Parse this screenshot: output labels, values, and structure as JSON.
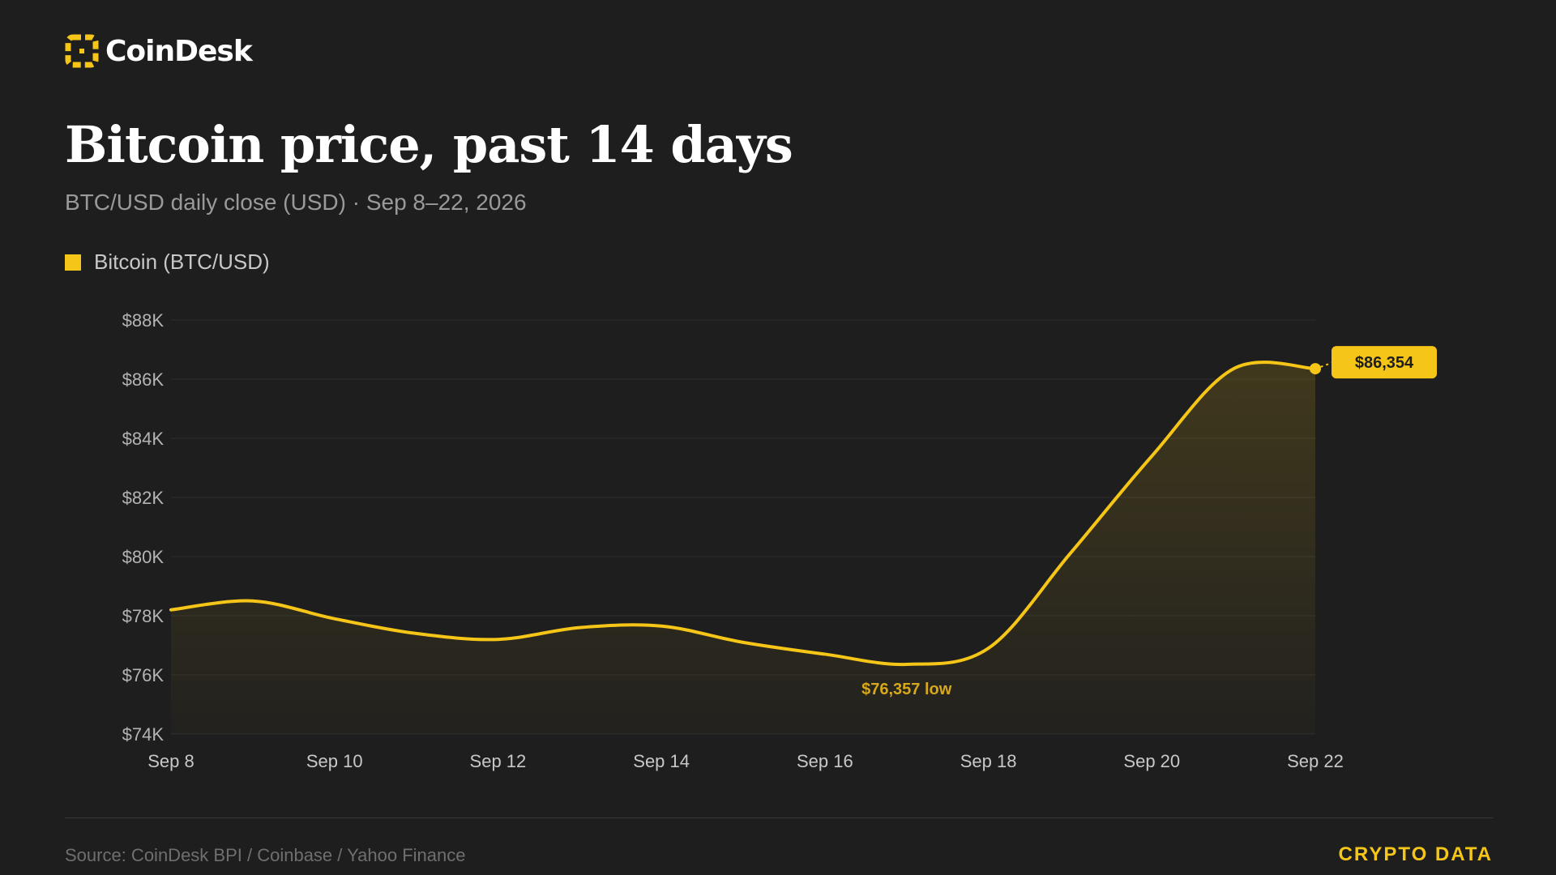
{
  "brand": {
    "name": "CoinDesk",
    "accent": "#f5c518"
  },
  "header": {
    "title": "Bitcoin price, past 14 days",
    "subtitle": "BTC/USD daily close (USD) · Sep 8–22, 2026"
  },
  "legend": {
    "label": "Bitcoin (BTC/USD)"
  },
  "chart_data": {
    "type": "area",
    "title": "Bitcoin price, past 14 days",
    "subtitle": "BTC/USD daily close (USD) · Sep 8–22, 2026",
    "xlabel": "",
    "ylabel": "",
    "x": [
      "Sep 8",
      "Sep 9",
      "Sep 10",
      "Sep 11",
      "Sep 12",
      "Sep 13",
      "Sep 14",
      "Sep 15",
      "Sep 16",
      "Sep 17",
      "Sep 18",
      "Sep 19",
      "Sep 20",
      "Sep 21",
      "Sep 22"
    ],
    "series": [
      {
        "name": "Bitcoin (BTC/USD)",
        "color": "#f5c518",
        "values": [
          78200,
          78500,
          77900,
          77400,
          77200,
          77600,
          77650,
          77100,
          76700,
          76357,
          76900,
          80100,
          83400,
          86354,
          86354
        ]
      }
    ],
    "x_ticks": [
      "Sep 8",
      "Sep 10",
      "Sep 12",
      "Sep 14",
      "Sep 16",
      "Sep 18",
      "Sep 20",
      "Sep 22"
    ],
    "y_ticks": [
      "$74K",
      "$76K",
      "$78K",
      "$80K",
      "$82K",
      "$84K",
      "$86K",
      "$88K"
    ],
    "ylim": [
      74000,
      88000
    ],
    "grid": true,
    "legend_position": "top-left",
    "annotations": [
      {
        "x": "Sep 17",
        "y": 76357,
        "text": "$76,357 low"
      },
      {
        "x": "Sep 22",
        "y": 86354,
        "text": "$86,354"
      }
    ]
  },
  "footer": {
    "source": "Source: CoinDesk BPI / Coinbase / Yahoo Finance",
    "tag": "CRYPTO DATA"
  }
}
